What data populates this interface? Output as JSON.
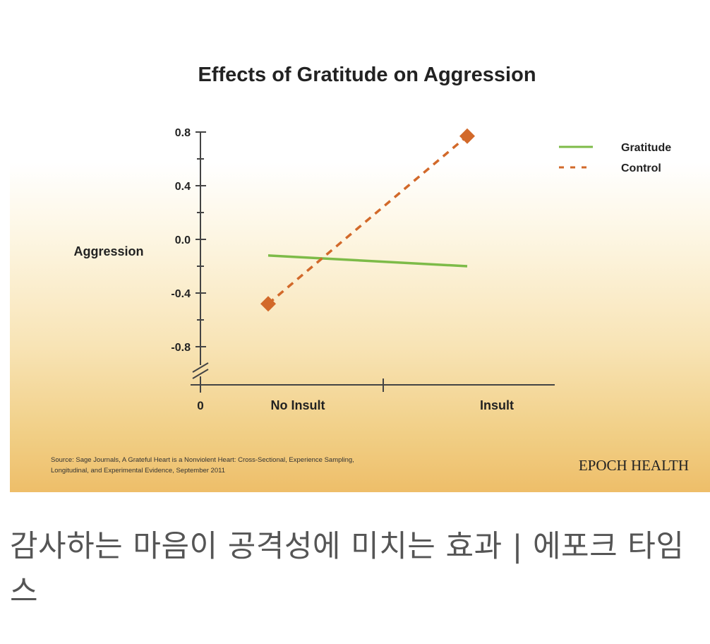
{
  "chart_data": {
    "type": "line",
    "title": "Effects of Gratitude on Aggression",
    "ylabel": "Aggression",
    "xlabel": "",
    "x_origin_label": "0",
    "categories": [
      "No Insult",
      "Insult"
    ],
    "ylim": [
      -1.0,
      0.8
    ],
    "yticks": [
      0.8,
      0.4,
      0.0,
      -0.4,
      -0.8
    ],
    "ytick_labels": [
      "0.8",
      "0.4",
      "0.0",
      "-0.4",
      "-0.8"
    ],
    "axis_break": true,
    "legend_position": "top-right",
    "series": [
      {
        "name": "Gratitude",
        "values": [
          -0.12,
          -0.2
        ],
        "style": "solid",
        "color": "#7dbb48"
      },
      {
        "name": "Control",
        "values": [
          -0.48,
          0.77
        ],
        "style": "dashed",
        "marker": "diamond",
        "color": "#d2692a"
      }
    ]
  },
  "source": "Source: Sage Journals, A Grateful Heart is a Nonviolent Heart: Cross-Sectional, Experience Sampling, Longitudinal, and Experimental Evidence, September 2011",
  "source_line1": "Source: Sage Journals, A Grateful Heart is a Nonviolent Heart: Cross-Sectional, Experience Sampling,",
  "source_line2": "Longitudinal, and Experimental Evidence, September 2011",
  "brand": "EPOCH HEALTH",
  "caption": "감사하는 마음이 공격성에 미치는 효과 | 에포크 타임스"
}
